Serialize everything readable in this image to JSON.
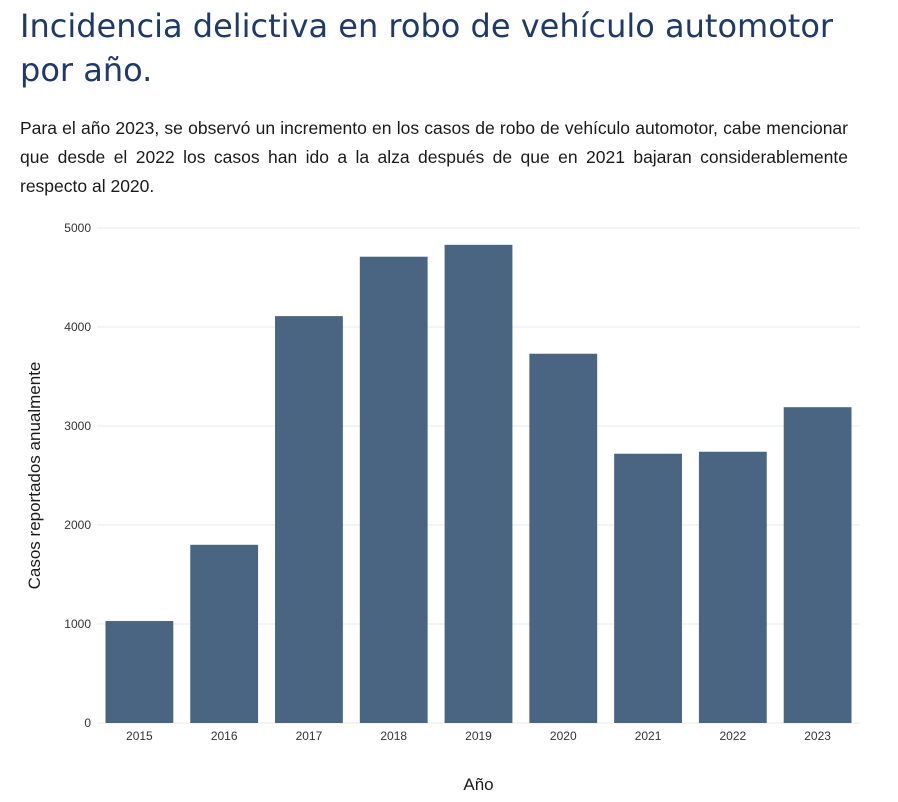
{
  "page": {
    "title": "Incidencia delictiva en robo de vehículo automotor por año.",
    "description": "Para el año 2023, se observó un incremento en los casos de robo de vehículo automotor, cabe mencionar que desde el 2022 los casos han ido a la alza después de que en 2021 bajaran considerablemente respecto al 2020."
  },
  "chart_data": {
    "type": "bar",
    "categories": [
      "2015",
      "2016",
      "2017",
      "2018",
      "2019",
      "2020",
      "2021",
      "2022",
      "2023"
    ],
    "values": [
      1030,
      1800,
      4110,
      4710,
      4830,
      3730,
      2720,
      2740,
      3190
    ],
    "xlabel": "Año",
    "ylabel": "Casos reportados anualmente",
    "ylim": [
      0,
      5000
    ],
    "yticks": [
      0,
      1000,
      2000,
      3000,
      4000,
      5000
    ],
    "grid": true,
    "bar_color": "#4a6582",
    "grid_color": "#e8e8e8"
  }
}
